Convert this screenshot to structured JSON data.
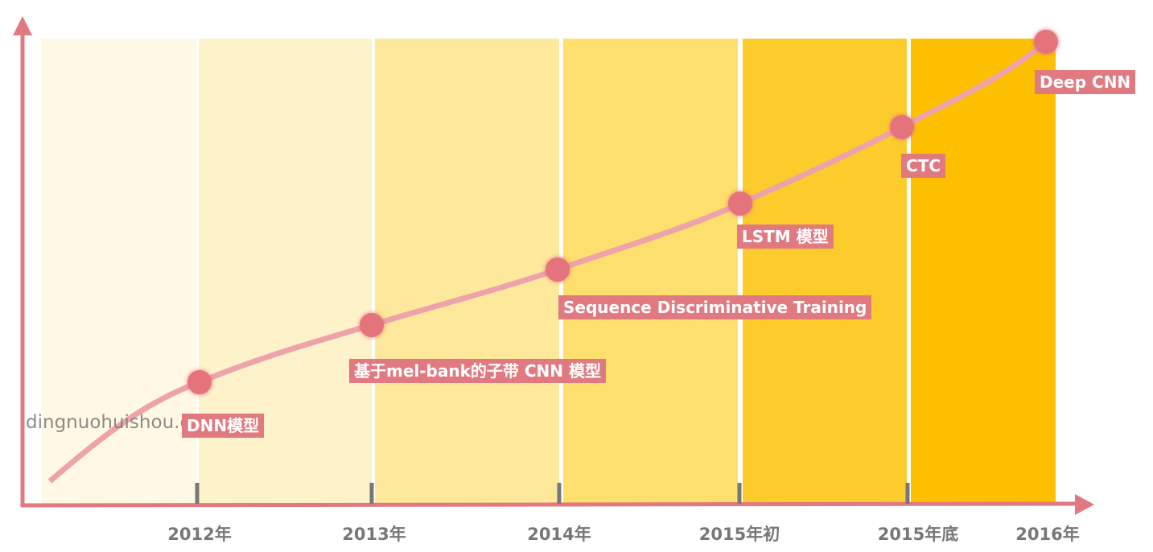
{
  "watermark": "dingnuohuishou.com",
  "milestones": [
    {
      "label": "DNN模型",
      "period": "2012年"
    },
    {
      "label": "基于mel-bank的子带 CNN 模型",
      "period": "2013年"
    },
    {
      "label": "Sequence Discriminative Training",
      "period": "2014年"
    },
    {
      "label": "LSTM 模型",
      "period": "2015年初"
    },
    {
      "label": "CTC",
      "period": "2015年底"
    },
    {
      "label": "Deep CNN",
      "period": "2016年"
    }
  ]
}
